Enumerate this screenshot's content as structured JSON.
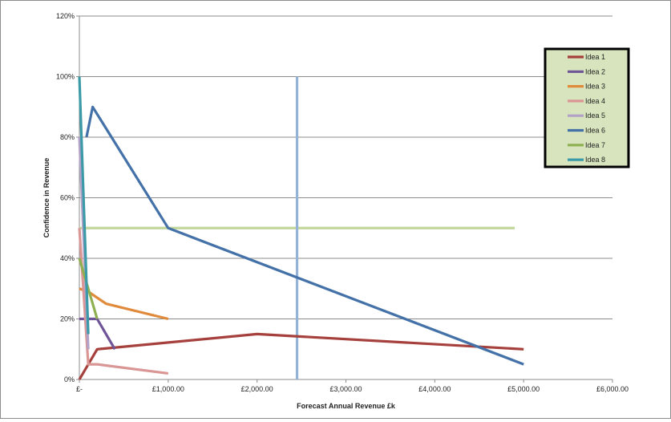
{
  "chart_data": {
    "type": "line",
    "title": "",
    "xlabel": "Forecast Annual Revenue £k",
    "ylabel": "Confidence in Revenue",
    "xlim": [
      0,
      6000
    ],
    "ylim": [
      0,
      120
    ],
    "xticks": [
      0,
      1000,
      2000,
      3000,
      4000,
      5000,
      6000
    ],
    "xtick_labels": [
      "£-",
      "£1,000.00",
      "£2,000.00",
      "£3,000.00",
      "£4,000.00",
      "£5,000.00",
      "£6,000.00"
    ],
    "yticks": [
      0,
      20,
      40,
      60,
      80,
      100,
      120
    ],
    "ytick_labels": [
      "0%",
      "20%",
      "40%",
      "60%",
      "80%",
      "100%",
      "120%"
    ],
    "grid": "horizontal",
    "legend_position": "top-right",
    "legend_background": "#d7e4bd",
    "series": [
      {
        "name": "Idea 1",
        "color": "#a5403c",
        "points": [
          [
            0,
            0
          ],
          [
            200,
            10
          ],
          [
            2000,
            15
          ],
          [
            5000,
            10
          ]
        ]
      },
      {
        "name": "Idea 2",
        "color": "#6f5597",
        "points": [
          [
            0,
            20
          ],
          [
            200,
            20
          ],
          [
            400,
            10
          ]
        ]
      },
      {
        "name": "Idea 3",
        "color": "#e08a3c",
        "points": [
          [
            0,
            30
          ],
          [
            100,
            29
          ],
          [
            300,
            25
          ],
          [
            1000,
            20
          ]
        ]
      },
      {
        "name": "Idea 4",
        "color": "#d99694",
        "points": [
          [
            0,
            50
          ],
          [
            100,
            5
          ],
          [
            200,
            5
          ],
          [
            1000,
            2
          ]
        ]
      },
      {
        "name": "Idea 5",
        "color": "#b3a2c7",
        "points": [
          [
            0,
            80
          ],
          [
            100,
            10
          ]
        ]
      },
      {
        "name": "Idea 6",
        "color": "#4472a8",
        "points": [
          [
            80,
            80
          ],
          [
            150,
            90
          ],
          [
            1000,
            50
          ],
          [
            5000,
            5
          ]
        ]
      },
      {
        "name": "Idea 7",
        "color": "#8fb050",
        "points": [
          [
            0,
            40
          ],
          [
            100,
            30
          ],
          [
            200,
            20
          ]
        ]
      },
      {
        "name": "Idea 8",
        "color": "#3b9aa8",
        "points": [
          [
            0,
            100
          ],
          [
            100,
            15
          ]
        ]
      }
    ],
    "reference_lines": [
      {
        "orientation": "horizontal",
        "y": 50,
        "x_start": 0,
        "x_end": 4900,
        "color": "#c3d69b"
      },
      {
        "orientation": "vertical",
        "x": 2450,
        "y_start": 0,
        "y_end": 100,
        "color": "#95b3d7"
      }
    ]
  }
}
